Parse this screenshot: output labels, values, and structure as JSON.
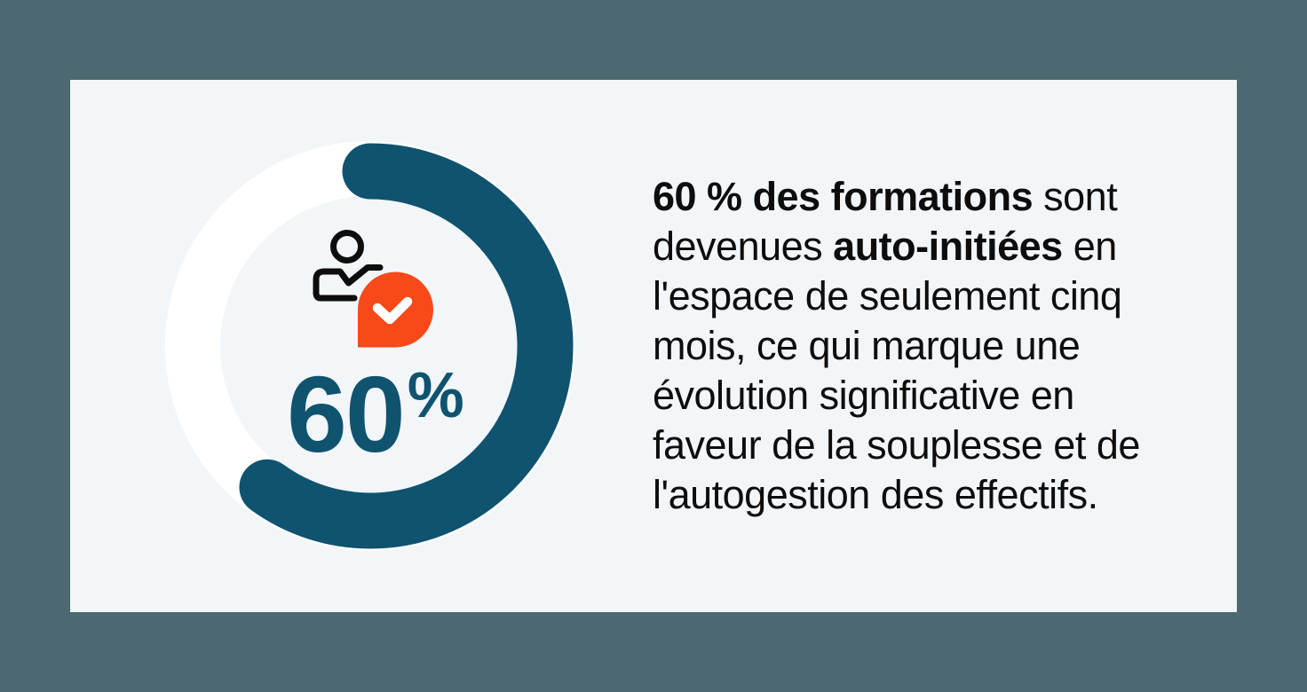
{
  "meta": {
    "kind": "statistic-infographic-card",
    "language": "fr"
  },
  "colors": {
    "page_background": "#4C6971",
    "card_background": "#F2F6F9",
    "donut_track": "#FFFFFF",
    "accent_blue": "#0F536F",
    "accent_orange": "#F7491A",
    "body_text": "#0D0D0D",
    "check_mark": "#FFFFFF",
    "person_outline": "#0D0D0D"
  },
  "chart_data": {
    "type": "pie",
    "subtype": "donut",
    "percent": 60,
    "values": [
      60,
      40
    ],
    "segment_colors": [
      "#0F536F",
      "#FFFFFF"
    ],
    "center_label": "60%",
    "start_angle_deg": 0,
    "direction": "clockwise",
    "legend": false,
    "title": ""
  },
  "donut": {
    "number": "60",
    "percent_sign": "%"
  },
  "icons": {
    "person": "person-outline-icon",
    "badge": "check-badge-icon",
    "check": "checkmark-icon"
  },
  "statistic": {
    "full_text": "60 % des formations sont devenues auto-initiées en l'espace de seulement cinq mois, ce qui marque une évolution significative en faveur de la souplesse et de l'autogestion des effectifs.",
    "lines": [
      {
        "segments": [
          {
            "text": "60 % des formations",
            "bold": true
          },
          {
            "text": " sont",
            "bold": false
          }
        ]
      },
      {
        "segments": [
          {
            "text": "devenues ",
            "bold": false
          },
          {
            "text": "auto-initiées",
            "bold": true
          },
          {
            "text": " en",
            "bold": false
          }
        ]
      },
      {
        "segments": [
          {
            "text": "l'espace de seulement cinq",
            "bold": false
          }
        ]
      },
      {
        "segments": [
          {
            "text": "mois, ce qui marque une",
            "bold": false
          }
        ]
      },
      {
        "segments": [
          {
            "text": "évolution significative en",
            "bold": false
          }
        ]
      },
      {
        "segments": [
          {
            "text": "faveur de la souplesse et de",
            "bold": false
          }
        ]
      },
      {
        "segments": [
          {
            "text": "l'autogestion des effectifs.",
            "bold": false
          }
        ]
      }
    ]
  }
}
